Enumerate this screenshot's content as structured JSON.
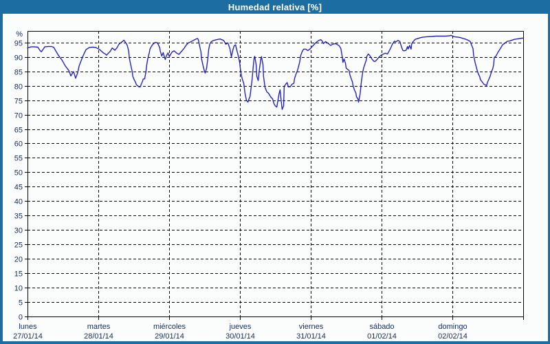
{
  "title": "Humedad relativa [%]",
  "colors": {
    "frame_and_titlebar": "#1c6da1",
    "title_text": "#ffffff",
    "panel_background": "#fbfdfd",
    "plot_line": "#2222c4",
    "grid_and_axis": "#000000",
    "tick_text": "#16295e"
  },
  "chart_data": {
    "type": "line",
    "title": "Humedad relativa [%]",
    "y_unit_label": "%",
    "ylim": [
      0,
      99
    ],
    "y_tick_min": 0,
    "y_tick_max": 95,
    "y_tick_step": 5,
    "x_hours_total": 168,
    "hours_per_day": 24,
    "grid": "dashed",
    "legend": "none",
    "categories": [
      {
        "name": "lunes",
        "date": "27/01/14"
      },
      {
        "name": "martes",
        "date": "28/01/14"
      },
      {
        "name": "miércoles",
        "date": "29/01/14"
      },
      {
        "name": "jueves",
        "date": "30/01/14"
      },
      {
        "name": "viernes",
        "date": "31/01/14"
      },
      {
        "name": "sábado",
        "date": "01/02/14"
      },
      {
        "name": "domingo",
        "date": "02/02/14"
      }
    ],
    "series": [
      {
        "name": "Humedad relativa",
        "units": "%",
        "points": [
          [
            0,
            93.1
          ],
          [
            1.2,
            93.5
          ],
          [
            2.3,
            93.5
          ],
          [
            3.5,
            93.4
          ],
          [
            4.2,
            92.3
          ],
          [
            4.7,
            91.8
          ],
          [
            5.4,
            92.8
          ],
          [
            5.8,
            93.5
          ],
          [
            7,
            93.6
          ],
          [
            8.2,
            93.6
          ],
          [
            8.9,
            93.3
          ],
          [
            9.8,
            91.7
          ],
          [
            10.5,
            90.5
          ],
          [
            11.7,
            88.9
          ],
          [
            12.8,
            86.9
          ],
          [
            14,
            85.3
          ],
          [
            14.7,
            83.4
          ],
          [
            15.2,
            84.3
          ],
          [
            15.6,
            84.9
          ],
          [
            16.3,
            82.6
          ],
          [
            17,
            84.5
          ],
          [
            17.5,
            86.9
          ],
          [
            18.7,
            90.1
          ],
          [
            19.8,
            92.5
          ],
          [
            21,
            93.3
          ],
          [
            22.2,
            93.4
          ],
          [
            23.3,
            93.2
          ],
          [
            24.5,
            92.5
          ],
          [
            25.7,
            91.4
          ],
          [
            26.4,
            91
          ],
          [
            26.8,
            90.6
          ],
          [
            27.5,
            91.4
          ],
          [
            28,
            91.9
          ],
          [
            28.7,
            93.1
          ],
          [
            29.2,
            92.7
          ],
          [
            29.6,
            92.3
          ],
          [
            30.3,
            93.1
          ],
          [
            31,
            94.4
          ],
          [
            32,
            95.2
          ],
          [
            32.7,
            95.8
          ],
          [
            33.4,
            94.8
          ],
          [
            33.8,
            94
          ],
          [
            34.3,
            92
          ],
          [
            34.5,
            89.6
          ],
          [
            35,
            87.2
          ],
          [
            35.5,
            84.8
          ],
          [
            35.7,
            83.2
          ],
          [
            36.2,
            82
          ],
          [
            36.6,
            81.2
          ],
          [
            36.9,
            80.4
          ],
          [
            37.3,
            80
          ],
          [
            37.8,
            79.6
          ],
          [
            38.3,
            79.7
          ],
          [
            38.5,
            80.4
          ],
          [
            39,
            81.6
          ],
          [
            39.2,
            82.3
          ],
          [
            39.7,
            82.4
          ],
          [
            40.1,
            84.6
          ],
          [
            40.4,
            87.2
          ],
          [
            40.8,
            89.6
          ],
          [
            41.3,
            91.5
          ],
          [
            41.5,
            92.7
          ],
          [
            42,
            93.7
          ],
          [
            42.5,
            94.4
          ],
          [
            43.2,
            95
          ],
          [
            43.9,
            95
          ],
          [
            44.3,
            94.4
          ],
          [
            44.8,
            93.2
          ],
          [
            45,
            92
          ],
          [
            45.5,
            90.3
          ],
          [
            46,
            91.5
          ],
          [
            46.2,
            90.7
          ],
          [
            46.7,
            89.1
          ],
          [
            47.1,
            90.4
          ],
          [
            47.6,
            91.4
          ],
          [
            48.1,
            90.1
          ],
          [
            48.5,
            90.9
          ],
          [
            49,
            91.7
          ],
          [
            49.7,
            92.1
          ],
          [
            50.6,
            91.3
          ],
          [
            51.3,
            90.9
          ],
          [
            52,
            91.7
          ],
          [
            53,
            92.9
          ],
          [
            53.7,
            94
          ],
          [
            54.4,
            94.8
          ],
          [
            55.3,
            95.2
          ],
          [
            56,
            95.6
          ],
          [
            56.7,
            96
          ],
          [
            57.6,
            96.4
          ],
          [
            57.9,
            96
          ],
          [
            58.3,
            94
          ],
          [
            58.8,
            91.7
          ],
          [
            59,
            89.3
          ],
          [
            59.5,
            86.9
          ],
          [
            60,
            84.9
          ],
          [
            60.2,
            84.4
          ],
          [
            60.7,
            86.1
          ],
          [
            61.1,
            89.3
          ],
          [
            61.4,
            92.5
          ],
          [
            61.8,
            94.5
          ],
          [
            62.3,
            95.3
          ],
          [
            63,
            95.7
          ],
          [
            64.2,
            96
          ],
          [
            65.3,
            96.2
          ],
          [
            66.5,
            95.7
          ],
          [
            67.2,
            94.4
          ],
          [
            67.9,
            94.9
          ],
          [
            68.6,
            92.9
          ],
          [
            69.1,
            90
          ],
          [
            69.5,
            92
          ],
          [
            70,
            93.8
          ],
          [
            70.5,
            94.2
          ],
          [
            70.9,
            92.5
          ],
          [
            71.4,
            90.5
          ],
          [
            71.9,
            88.1
          ],
          [
            72.3,
            84.5
          ],
          [
            72.8,
            82.3
          ],
          [
            73.3,
            80.8
          ],
          [
            73.7,
            77.5
          ],
          [
            74.2,
            75
          ],
          [
            74.7,
            74.3
          ],
          [
            75.1,
            75.5
          ],
          [
            75.4,
            76.2
          ],
          [
            75.8,
            79.4
          ],
          [
            76.1,
            82
          ],
          [
            76.5,
            86.5
          ],
          [
            76.8,
            89.5
          ],
          [
            77,
            90.2
          ],
          [
            77.5,
            87.3
          ],
          [
            77.7,
            83.3
          ],
          [
            78.2,
            81.8
          ],
          [
            78.6,
            85.7
          ],
          [
            79.1,
            89.5
          ],
          [
            79.3,
            90.1
          ],
          [
            79.8,
            87.3
          ],
          [
            80,
            83.3
          ],
          [
            80.5,
            79.4
          ],
          [
            81,
            78.2
          ],
          [
            81.2,
            77.8
          ],
          [
            81.7,
            77.4
          ],
          [
            82.4,
            76.2
          ],
          [
            83.1,
            75.4
          ],
          [
            83.5,
            73.8
          ],
          [
            84,
            73
          ],
          [
            84.5,
            72.6
          ],
          [
            84.7,
            73.8
          ],
          [
            85.2,
            77
          ],
          [
            85.6,
            78.6
          ],
          [
            85.9,
            75.4
          ],
          [
            86.3,
            71.8
          ],
          [
            86.8,
            73
          ],
          [
            87,
            79.8
          ],
          [
            87.5,
            80.5
          ],
          [
            88,
            81.1
          ],
          [
            88.4,
            79.6
          ],
          [
            89.1,
            79.7
          ],
          [
            89.6,
            80.5
          ],
          [
            90.3,
            80.9
          ],
          [
            90.5,
            82.5
          ],
          [
            91,
            84
          ],
          [
            91.5,
            85.3
          ],
          [
            92.2,
            88
          ],
          [
            92.6,
            90.5
          ],
          [
            93.1,
            91.9
          ],
          [
            93.6,
            92.7
          ],
          [
            94.3,
            92.7
          ],
          [
            95,
            92.2
          ],
          [
            95.7,
            92.7
          ],
          [
            96.4,
            93.5
          ],
          [
            97.3,
            94.5
          ],
          [
            98,
            95.2
          ],
          [
            98.7,
            95.7
          ],
          [
            99.4,
            96
          ],
          [
            99.9,
            95.5
          ],
          [
            100.3,
            94.6
          ],
          [
            101,
            95.3
          ],
          [
            102,
            94.6
          ],
          [
            102.7,
            94
          ],
          [
            103.4,
            94.4
          ],
          [
            104.3,
            94.6
          ],
          [
            105,
            94.3
          ],
          [
            105.7,
            93.8
          ],
          [
            106.2,
            92.9
          ],
          [
            106.6,
            90.5
          ],
          [
            106.9,
            88.1
          ],
          [
            107.3,
            89.3
          ],
          [
            107.8,
            87.7
          ],
          [
            108,
            86.1
          ],
          [
            108.5,
            85.7
          ],
          [
            109,
            85.3
          ],
          [
            109.2,
            84.1
          ],
          [
            109.7,
            82.5
          ],
          [
            110.1,
            81.4
          ],
          [
            110.4,
            79.8
          ],
          [
            110.8,
            78.6
          ],
          [
            111.3,
            77.4
          ],
          [
            111.5,
            76.2
          ],
          [
            112,
            75.4
          ],
          [
            112.2,
            74.3
          ],
          [
            112.7,
            77
          ],
          [
            113.2,
            81.8
          ],
          [
            113.6,
            84.5
          ],
          [
            113.9,
            86.1
          ],
          [
            114.3,
            87.3
          ],
          [
            114.8,
            88.9
          ],
          [
            115,
            90.2
          ],
          [
            115.5,
            91
          ],
          [
            116,
            90.5
          ],
          [
            116.7,
            89.3
          ],
          [
            117.4,
            88.5
          ],
          [
            117.8,
            88.4
          ],
          [
            118.3,
            88.9
          ],
          [
            119,
            89.8
          ],
          [
            119.7,
            90.5
          ],
          [
            120.6,
            91
          ],
          [
            121.3,
            91.3
          ],
          [
            122,
            91
          ],
          [
            123,
            92.9
          ],
          [
            123.7,
            94.5
          ],
          [
            124.4,
            95.5
          ],
          [
            124.8,
            95.2
          ],
          [
            125.5,
            95.7
          ],
          [
            126.2,
            95.4
          ],
          [
            126.7,
            93.6
          ],
          [
            127.2,
            92.3
          ],
          [
            127.6,
            92.1
          ],
          [
            128.3,
            92.3
          ],
          [
            128.8,
            93.6
          ],
          [
            129,
            92.7
          ],
          [
            129.5,
            94
          ],
          [
            130,
            92.7
          ],
          [
            130.2,
            94.5
          ],
          [
            130.7,
            95.3
          ],
          [
            131.4,
            96.1
          ],
          [
            132.3,
            96.4
          ],
          [
            133.7,
            96.8
          ],
          [
            135.3,
            97
          ],
          [
            137,
            97.1
          ],
          [
            138.4,
            97.2
          ],
          [
            140,
            97.2
          ],
          [
            141.6,
            97.2
          ],
          [
            143,
            97.3
          ],
          [
            143.5,
            97.5
          ],
          [
            144.7,
            97
          ],
          [
            146.3,
            96.8
          ],
          [
            147.7,
            96.4
          ],
          [
            148.6,
            96.1
          ],
          [
            149.3,
            95.8
          ],
          [
            150,
            95.4
          ],
          [
            151,
            92.9
          ],
          [
            151.2,
            90.5
          ],
          [
            151.7,
            88.1
          ],
          [
            152.1,
            86.5
          ],
          [
            152.4,
            85.3
          ],
          [
            152.8,
            84.1
          ],
          [
            153.3,
            83.1
          ],
          [
            153.5,
            82.1
          ],
          [
            154,
            81.5
          ],
          [
            154.7,
            80.5
          ],
          [
            155.6,
            80.1
          ],
          [
            155.9,
            81.2
          ],
          [
            156.3,
            82.1
          ],
          [
            156.8,
            83.3
          ],
          [
            157.3,
            85
          ],
          [
            157.7,
            86
          ],
          [
            158,
            87.4
          ],
          [
            158.2,
            89.8
          ],
          [
            158.7,
            90.2
          ],
          [
            159.4,
            91.5
          ],
          [
            160.3,
            93
          ],
          [
            161,
            94.2
          ],
          [
            161.7,
            94.7
          ],
          [
            162.6,
            95.4
          ],
          [
            163.3,
            95.5
          ],
          [
            165,
            96.1
          ],
          [
            166.4,
            96.3
          ],
          [
            167.5,
            96.5
          ],
          [
            168,
            96.5
          ]
        ]
      }
    ]
  }
}
